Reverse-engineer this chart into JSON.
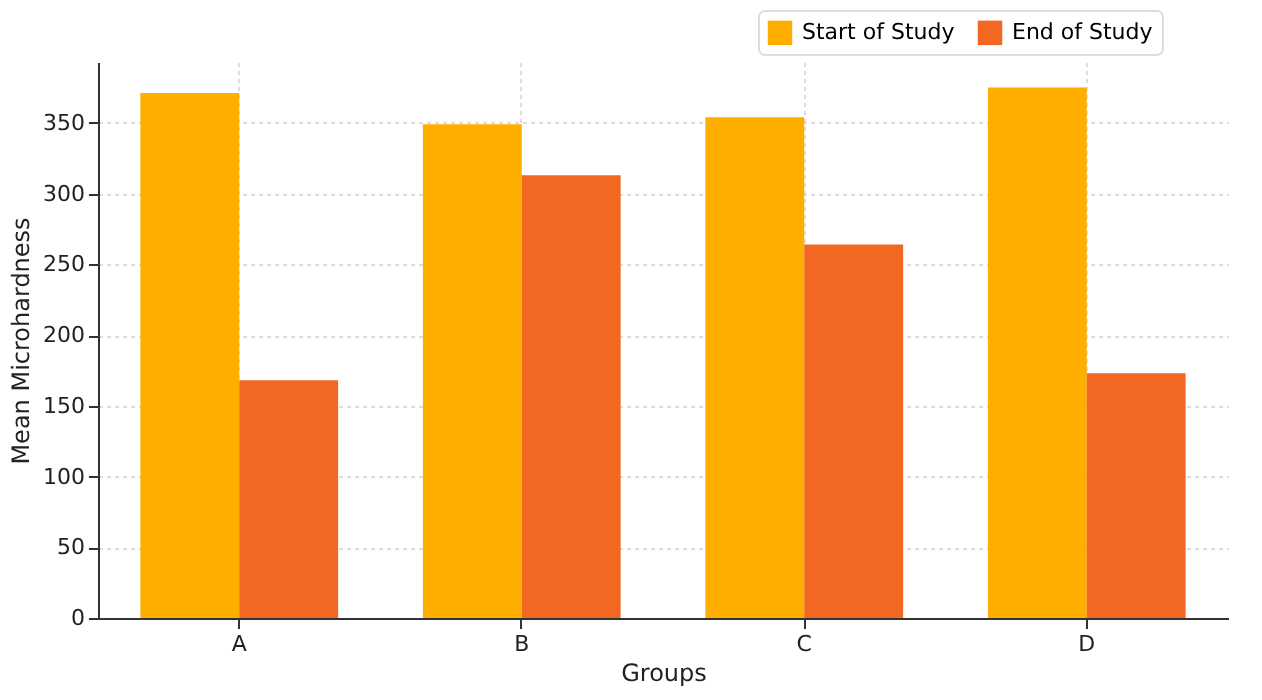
{
  "chart_data": {
    "type": "bar",
    "xlabel": "Groups",
    "ylabel": "Mean Microhardness",
    "categories": [
      "A",
      "B",
      "C",
      "D"
    ],
    "series": [
      {
        "name": "Start of Study",
        "color": "#ffae00",
        "values": [
          371,
          349,
          354,
          375
        ]
      },
      {
        "name": "End of Study",
        "color": "#f26722",
        "values": [
          168,
          313,
          264,
          173
        ]
      }
    ],
    "ylim": [
      0,
      393
    ],
    "yticks": [
      0,
      50,
      100,
      150,
      200,
      250,
      300,
      350
    ],
    "grid": true,
    "legend": "top right"
  }
}
